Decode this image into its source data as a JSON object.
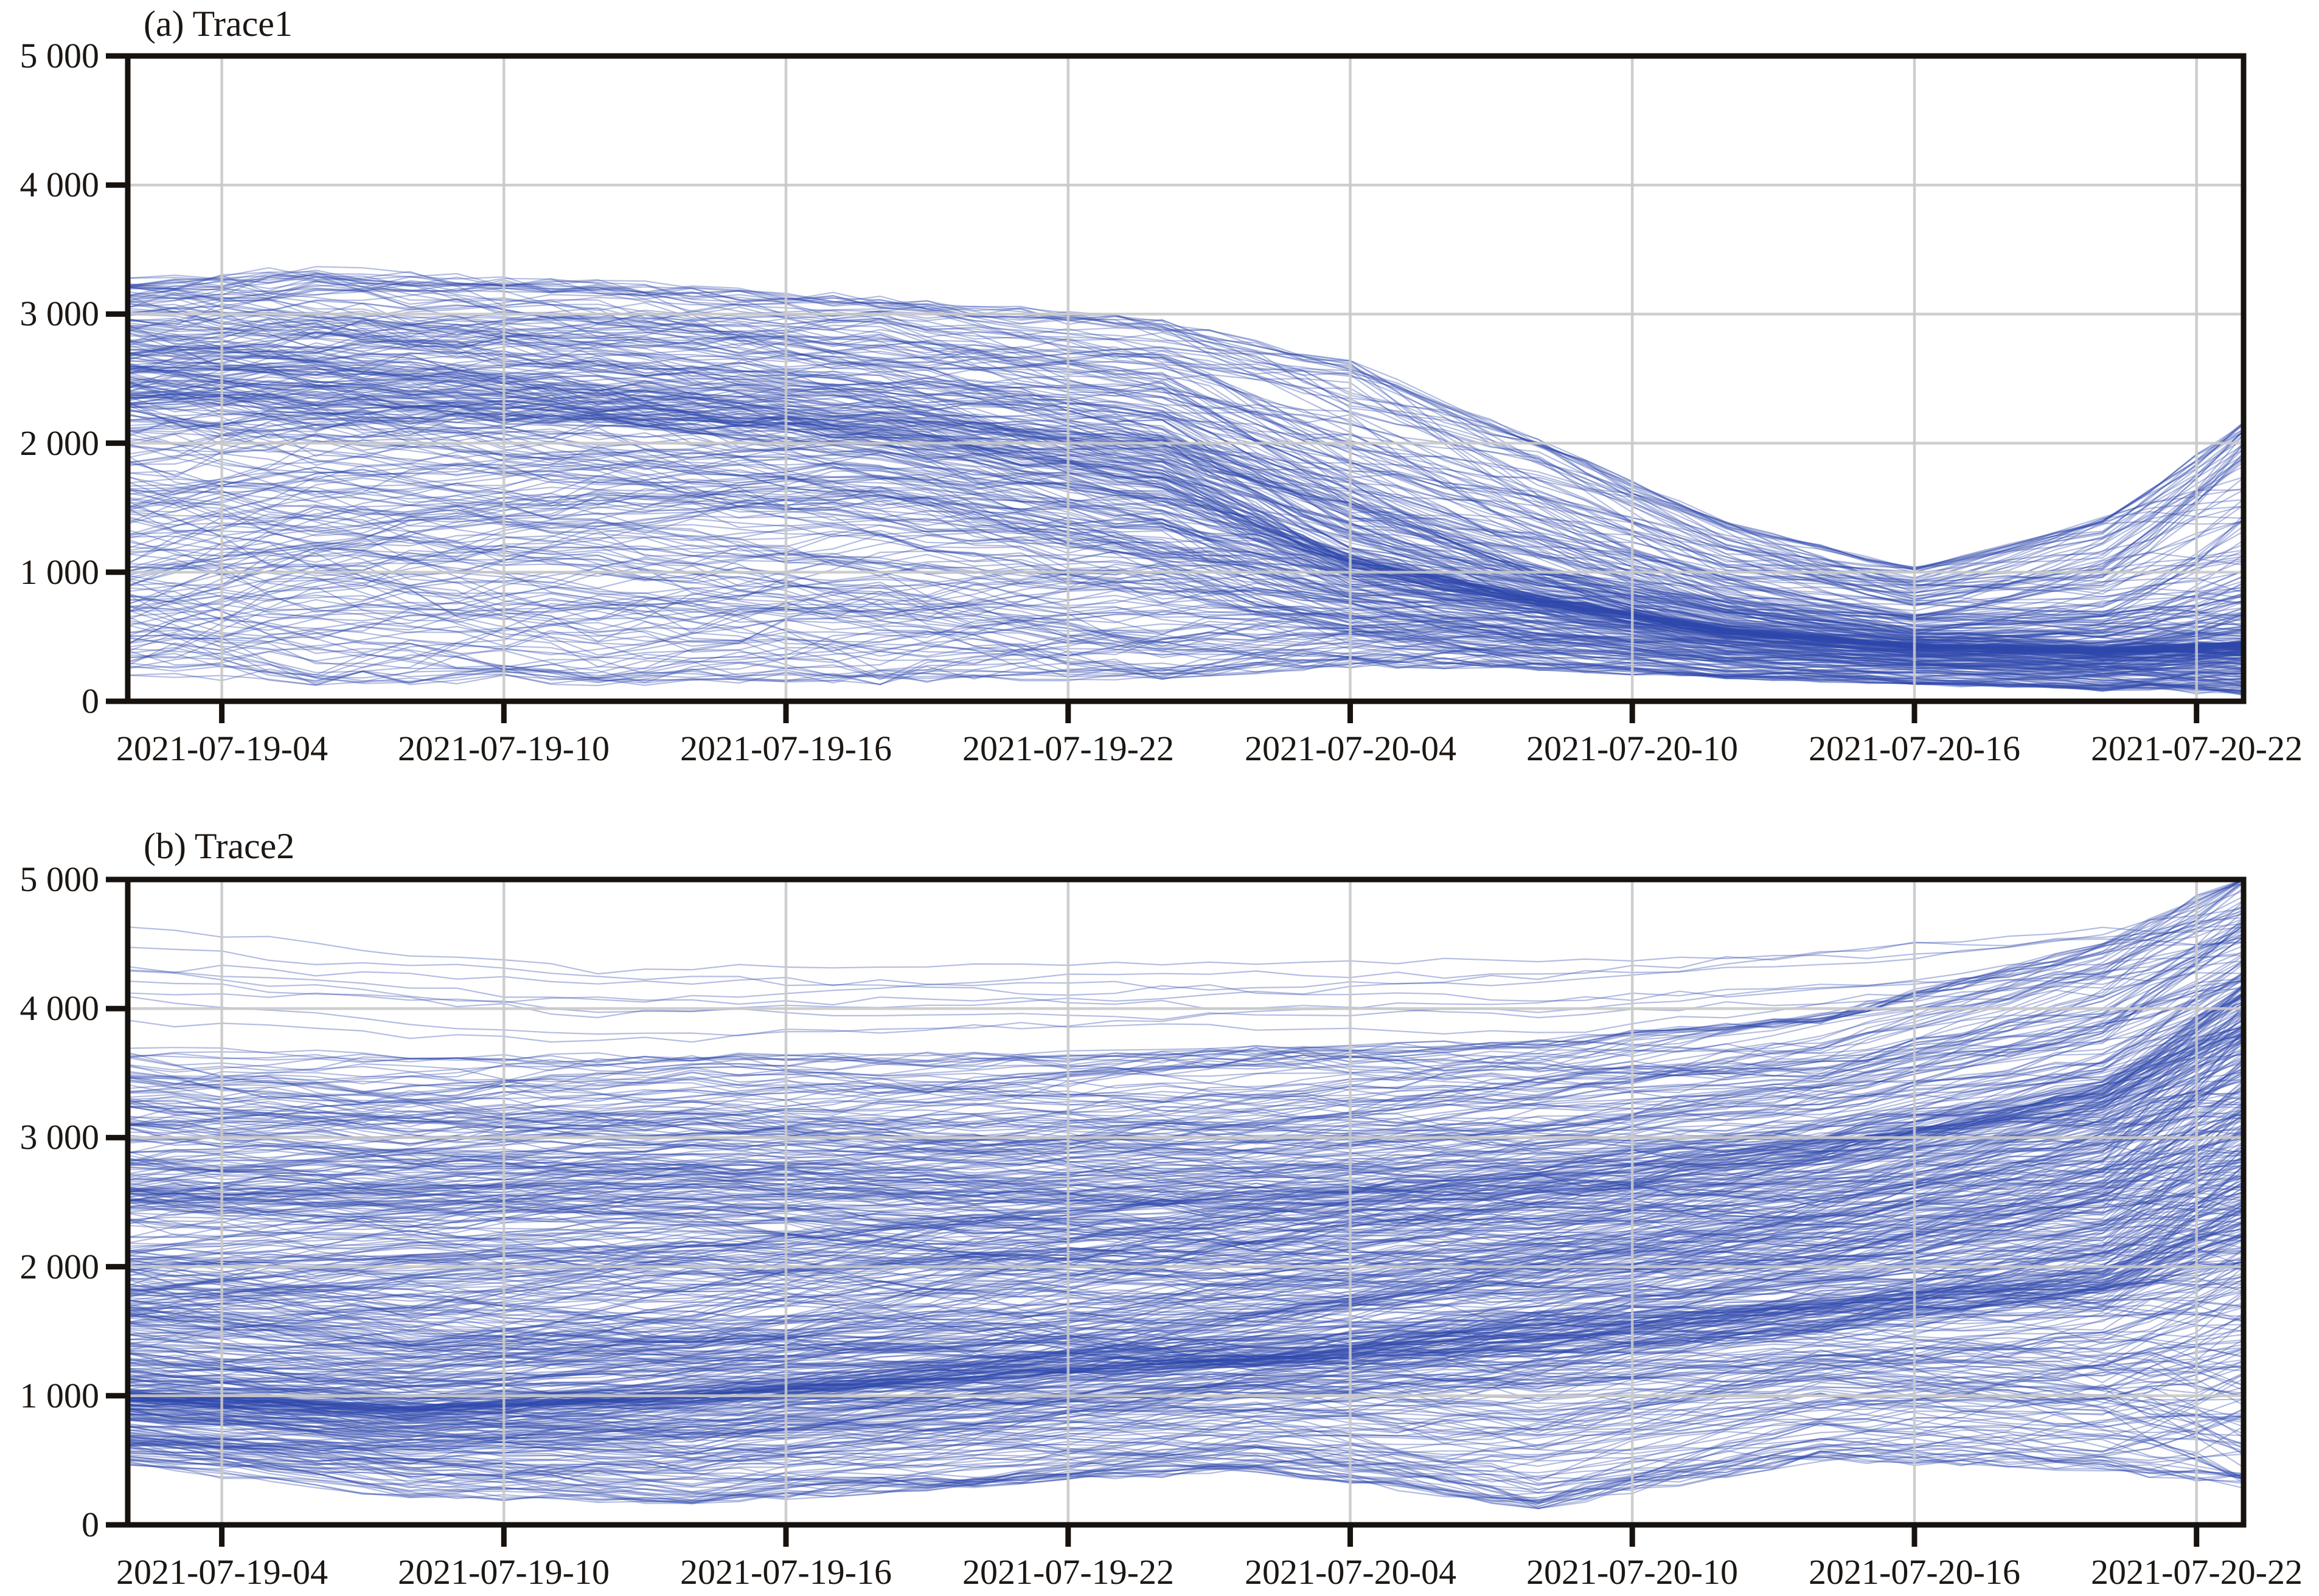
{
  "figure": {
    "background": "#ffffff",
    "description": "Two stacked ensemble spaghetti-line panels of trajectory values versus time",
    "panel_titles": [
      "(a) Trace1",
      "(b) Trace2"
    ]
  },
  "chart_data": [
    {
      "type": "line",
      "variant": "ensemble-spaghetti",
      "title": "(a) Trace1",
      "x_axis": {
        "kind": "time",
        "total_hours": 45,
        "start": "2021-07-19 02:00",
        "end": "2021-07-20 23:00",
        "tick_hours": [
          2,
          8,
          14,
          20,
          26,
          32,
          38,
          44
        ],
        "tick_labels": [
          "2021-07-19-04",
          "2021-07-19-10",
          "2021-07-19-16",
          "2021-07-19-22",
          "2021-07-20-04",
          "2021-07-20-10",
          "2021-07-20-16",
          "2021-07-20-22"
        ]
      },
      "y_axis": {
        "min": 0,
        "max": 5000,
        "tick_values": [
          0,
          1000,
          2000,
          3000,
          4000,
          5000
        ],
        "tick_labels": [
          "0",
          "1 000",
          "2 000",
          "3 000",
          "4 000",
          "5 000"
        ]
      },
      "grid": {
        "show": true,
        "color": "#c9c9c9",
        "on_top": true
      },
      "line_style": {
        "color": "#3048ab",
        "alpha": 0.36,
        "width": 2.2
      },
      "ensemble": {
        "hours_step": 1,
        "components": [
          {
            "name": "main-bundle",
            "n": 330,
            "seed": 20210719,
            "u_walk": 0.11,
            "jitter": 0.02,
            "t": [
              0,
              4,
              10,
              16,
              22,
              26,
              30,
              34,
              38,
              42,
              45
            ],
            "lo": [
              80,
              120,
              120,
              130,
              180,
              280,
              250,
              180,
              130,
              90,
              70
            ],
            "hi": [
              3350,
              3350,
              3250,
              3120,
              2950,
              2650,
              2050,
              1400,
              1050,
              1450,
              2200
            ],
            "center": [
              2350,
              2300,
              2200,
              2050,
              1700,
              1100,
              800,
              550,
              430,
              390,
              430
            ],
            "conc": [
              1.35,
              1.4,
              1.4,
              1.4,
              1.35,
              1.55,
              1.75,
              1.95,
              2.1,
              2.2,
              2.2
            ]
          }
        ]
      }
    },
    {
      "type": "line",
      "variant": "ensemble-spaghetti",
      "title": "(b) Trace2",
      "x_axis": {
        "kind": "time",
        "total_hours": 45,
        "start": "2021-07-19 02:00",
        "end": "2021-07-20 23:00",
        "tick_hours": [
          2,
          8,
          14,
          20,
          26,
          32,
          38,
          44
        ],
        "tick_labels": [
          "2021-07-19-04",
          "2021-07-19-10",
          "2021-07-19-16",
          "2021-07-19-22",
          "2021-07-20-04",
          "2021-07-20-10",
          "2021-07-20-16",
          "2021-07-20-22"
        ]
      },
      "y_axis": {
        "min": 0,
        "max": 5000,
        "tick_values": [
          0,
          1000,
          2000,
          3000,
          4000,
          5000
        ],
        "tick_labels": [
          "0",
          "1 000",
          "2 000",
          "3 000",
          "4 000",
          "5 000"
        ]
      },
      "grid": {
        "show": true,
        "color": "#c9c9c9",
        "on_top": true
      },
      "line_style": {
        "color": "#3048ab",
        "alpha": 0.36,
        "width": 2.2
      },
      "ensemble": {
        "hours_step": 1,
        "components": [
          {
            "name": "lower-bundle",
            "n": 300,
            "seed": 7,
            "u_walk": 0.13,
            "jitter": 0.018,
            "t": [
              0,
              6,
              12,
              18,
              24,
              30,
              36,
              42,
              45
            ],
            "lo": [
              420,
              200,
              160,
              300,
              420,
              120,
              500,
              420,
              300
            ],
            "hi": [
              2200,
              2100,
              2200,
              2400,
              2600,
              2700,
              2900,
              3400,
              4200
            ],
            "center": [
              1000,
              900,
              1000,
              1150,
              1300,
              1500,
              1700,
              1900,
              2300
            ],
            "conc": [
              1.6,
              1.55,
              1.5,
              1.45,
              1.4,
              1.35,
              1.3,
              1.25,
              1.2
            ]
          },
          {
            "name": "upper-bundle",
            "n": 230,
            "seed": 99,
            "u_walk": 0.12,
            "jitter": 0.018,
            "t": [
              0,
              6,
              12,
              18,
              24,
              30,
              36,
              42,
              45
            ],
            "lo": [
              1300,
              1350,
              1400,
              1300,
              1200,
              1300,
              1500,
              1800,
              2000
            ],
            "hi": [
              3750,
              3650,
              3650,
              3650,
              3700,
              3750,
              3950,
              4500,
              5050
            ],
            "center": [
              2600,
              2600,
              2650,
              2600,
              2650,
              2750,
              2950,
              3300,
              3800
            ],
            "conc": [
              1.35,
              1.35,
              1.3,
              1.3,
              1.3,
              1.3,
              1.3,
              1.25,
              1.15
            ]
          },
          {
            "name": "high-outliers",
            "n": 9,
            "seed": 4242,
            "u_walk": 0.25,
            "jitter": 0.04,
            "t": [
              0,
              10,
              20,
              30,
              38,
              45
            ],
            "lo": [
              3800,
              3700,
              3750,
              3800,
              3900,
              4000
            ],
            "hi": [
              4750,
              4500,
              4550,
              4500,
              4700,
              5050
            ]
          }
        ]
      }
    }
  ],
  "style": {
    "axis_color": "#17120e",
    "text_color": "#1c1713",
    "trace_color": "#3048ab",
    "grid_color": "#c9c9c9"
  }
}
